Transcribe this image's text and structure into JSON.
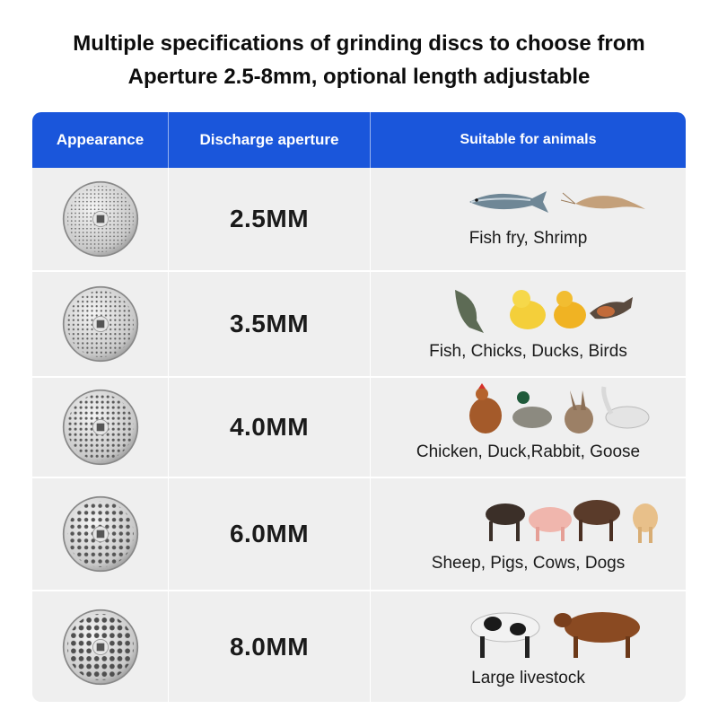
{
  "headline": {
    "line1": "Multiple specifications of grinding discs to choose from",
    "line2": "Aperture 2.5-8mm, optional length adjustable"
  },
  "table": {
    "headers": [
      "Appearance",
      "Discharge aperture",
      "Suitable for animals"
    ],
    "header_color": "#1a56db",
    "rows": [
      {
        "aperture": "2.5MM",
        "animals": "Fish fry, Shrimp"
      },
      {
        "aperture": "3.5MM",
        "animals": "Fish, Chicks, Ducks, Birds"
      },
      {
        "aperture": "4.0MM",
        "animals": "Chicken, Duck,Rabbit, Goose"
      },
      {
        "aperture": "6.0MM",
        "animals": "Sheep, Pigs, Cows, Dogs"
      },
      {
        "aperture": "8.0MM",
        "animals": "Large livestock"
      }
    ]
  }
}
